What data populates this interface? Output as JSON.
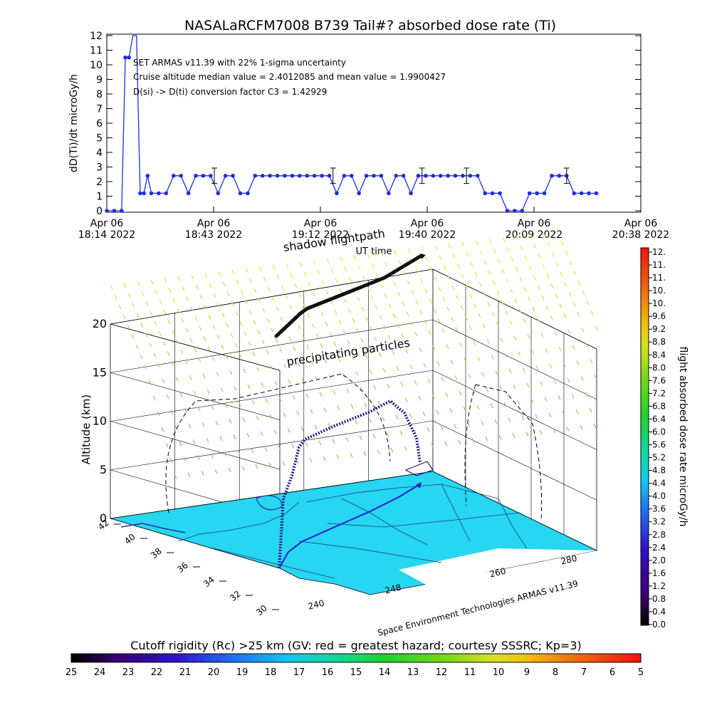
{
  "title": "NASALaRCFM7008  B739 Tail#? absorbed dose rate (Ti)",
  "chart_data": [
    {
      "type": "line",
      "ylabel": "dD(Ti)/dt microGy/h",
      "xlabel": "UT time",
      "ylim": [
        0,
        12
      ],
      "yticks": [
        "0",
        "1",
        "2",
        "3",
        "4",
        "5",
        "6",
        "7",
        "8",
        "9",
        "10",
        "11",
        "12"
      ],
      "xticks": [
        {
          "top": "Apr 06",
          "bottom": "18:14 2022"
        },
        {
          "top": "Apr 06",
          "bottom": "18:43 2022"
        },
        {
          "top": "Apr 06",
          "bottom": "19:12 2022"
        },
        {
          "top": "Apr 06",
          "bottom": "19:40 2022"
        },
        {
          "top": "Apr 06",
          "bottom": "20:09 2022"
        },
        {
          "top": "Apr 06",
          "bottom": "20:38 2022"
        }
      ],
      "x_minutes_since_1814": [
        0,
        2,
        4,
        5,
        6,
        7,
        8,
        9,
        10,
        11,
        12,
        14,
        16,
        18,
        20,
        22,
        24,
        26,
        28,
        30,
        32,
        34,
        36,
        38,
        40,
        42,
        44,
        46,
        48,
        50,
        52,
        54,
        56,
        58,
        60,
        62,
        64,
        66,
        68,
        70,
        72,
        74,
        76,
        78,
        80,
        82,
        84,
        86,
        88,
        90,
        92,
        94,
        96,
        98,
        100,
        102,
        104,
        106,
        108,
        110,
        112,
        114,
        116,
        118,
        120,
        122,
        124,
        126,
        128,
        130,
        132
      ],
      "series": [
        {
          "name": "absorbed dose rate",
          "color": "#1e2ee0",
          "values": [
            0,
            0,
            0,
            10.5,
            10.5,
            12,
            12,
            1.2,
            1.2,
            2.4,
            1.2,
            1.2,
            1.2,
            2.4,
            2.4,
            1.2,
            2.4,
            2.4,
            2.4,
            1.2,
            2.4,
            2.4,
            1.2,
            1.2,
            2.4,
            2.4,
            2.4,
            2.4,
            2.4,
            2.4,
            2.4,
            2.4,
            2.4,
            2.4,
            2.4,
            1.2,
            2.4,
            2.4,
            1.2,
            2.4,
            2.4,
            2.4,
            1.2,
            2.4,
            2.4,
            1.2,
            2.4,
            2.4,
            2.4,
            2.4,
            2.4,
            2.4,
            2.4,
            2.4,
            2.4,
            1.2,
            1.2,
            1.2,
            0,
            0,
            0,
            1.2,
            1.2,
            1.2,
            2.4,
            2.4,
            2.4,
            1.2,
            1.2,
            1.2,
            1.2
          ]
        }
      ],
      "error_bars_at_minutes": [
        29,
        61,
        85,
        97,
        124
      ],
      "annotations": [
        "SET ARMAS v11.39 with 22% 1-sigma uncertainty",
        "Cruise altitude median value = 2.4012085 and mean value = 1.9900427",
        "D(si) -> D(ti) conversion factor C3 = 1.42929"
      ]
    },
    {
      "type": "scatter",
      "zlabel": "Altitude (km)",
      "zticks": [
        "0",
        "5",
        "10",
        "15",
        "20"
      ],
      "lat_ticks": [
        "42",
        "40",
        "38",
        "36",
        "34",
        "32",
        "30"
      ],
      "lon_ticks": [
        "240",
        "248",
        "260",
        "280"
      ],
      "flightpath_label": "shadow flightpath",
      "precipitation_label": "precipitating particles",
      "footer": "Space Environment Technologies ARMAS v11.39",
      "colorbar": {
        "label": "flight absorbed dose rate microGy/h",
        "ticks": [
          "12.",
          "11.",
          "11.",
          "10.",
          "10.",
          "9.6",
          "9.2",
          "8.8",
          "8.4",
          "8.0",
          "7.6",
          "7.2",
          "6.8",
          "6.4",
          "6.0",
          "5.6",
          "5.2",
          "4.8",
          "4.4",
          "4.0",
          "3.6",
          "3.2",
          "2.8",
          "2.4",
          "2.0",
          "1.6",
          "1.2",
          "0.8",
          "0.4",
          "0.0"
        ]
      }
    }
  ],
  "cutoff": {
    "label": "Cutoff rigidity (Rc) >25 km (GV: red = greatest hazard; courtesy SSSRC; Kp=3)",
    "ticks": [
      "25",
      "24",
      "23",
      "22",
      "21",
      "20",
      "19",
      "18",
      "17",
      "16",
      "15",
      "14",
      "13",
      "12",
      "11",
      "10",
      "9",
      "8",
      "7",
      "6",
      "5"
    ]
  },
  "colors": {
    "series": "#1e2ee0",
    "map_fill": "#27d6f0",
    "flight": "#2a1a8a",
    "shadow": "#111111"
  }
}
